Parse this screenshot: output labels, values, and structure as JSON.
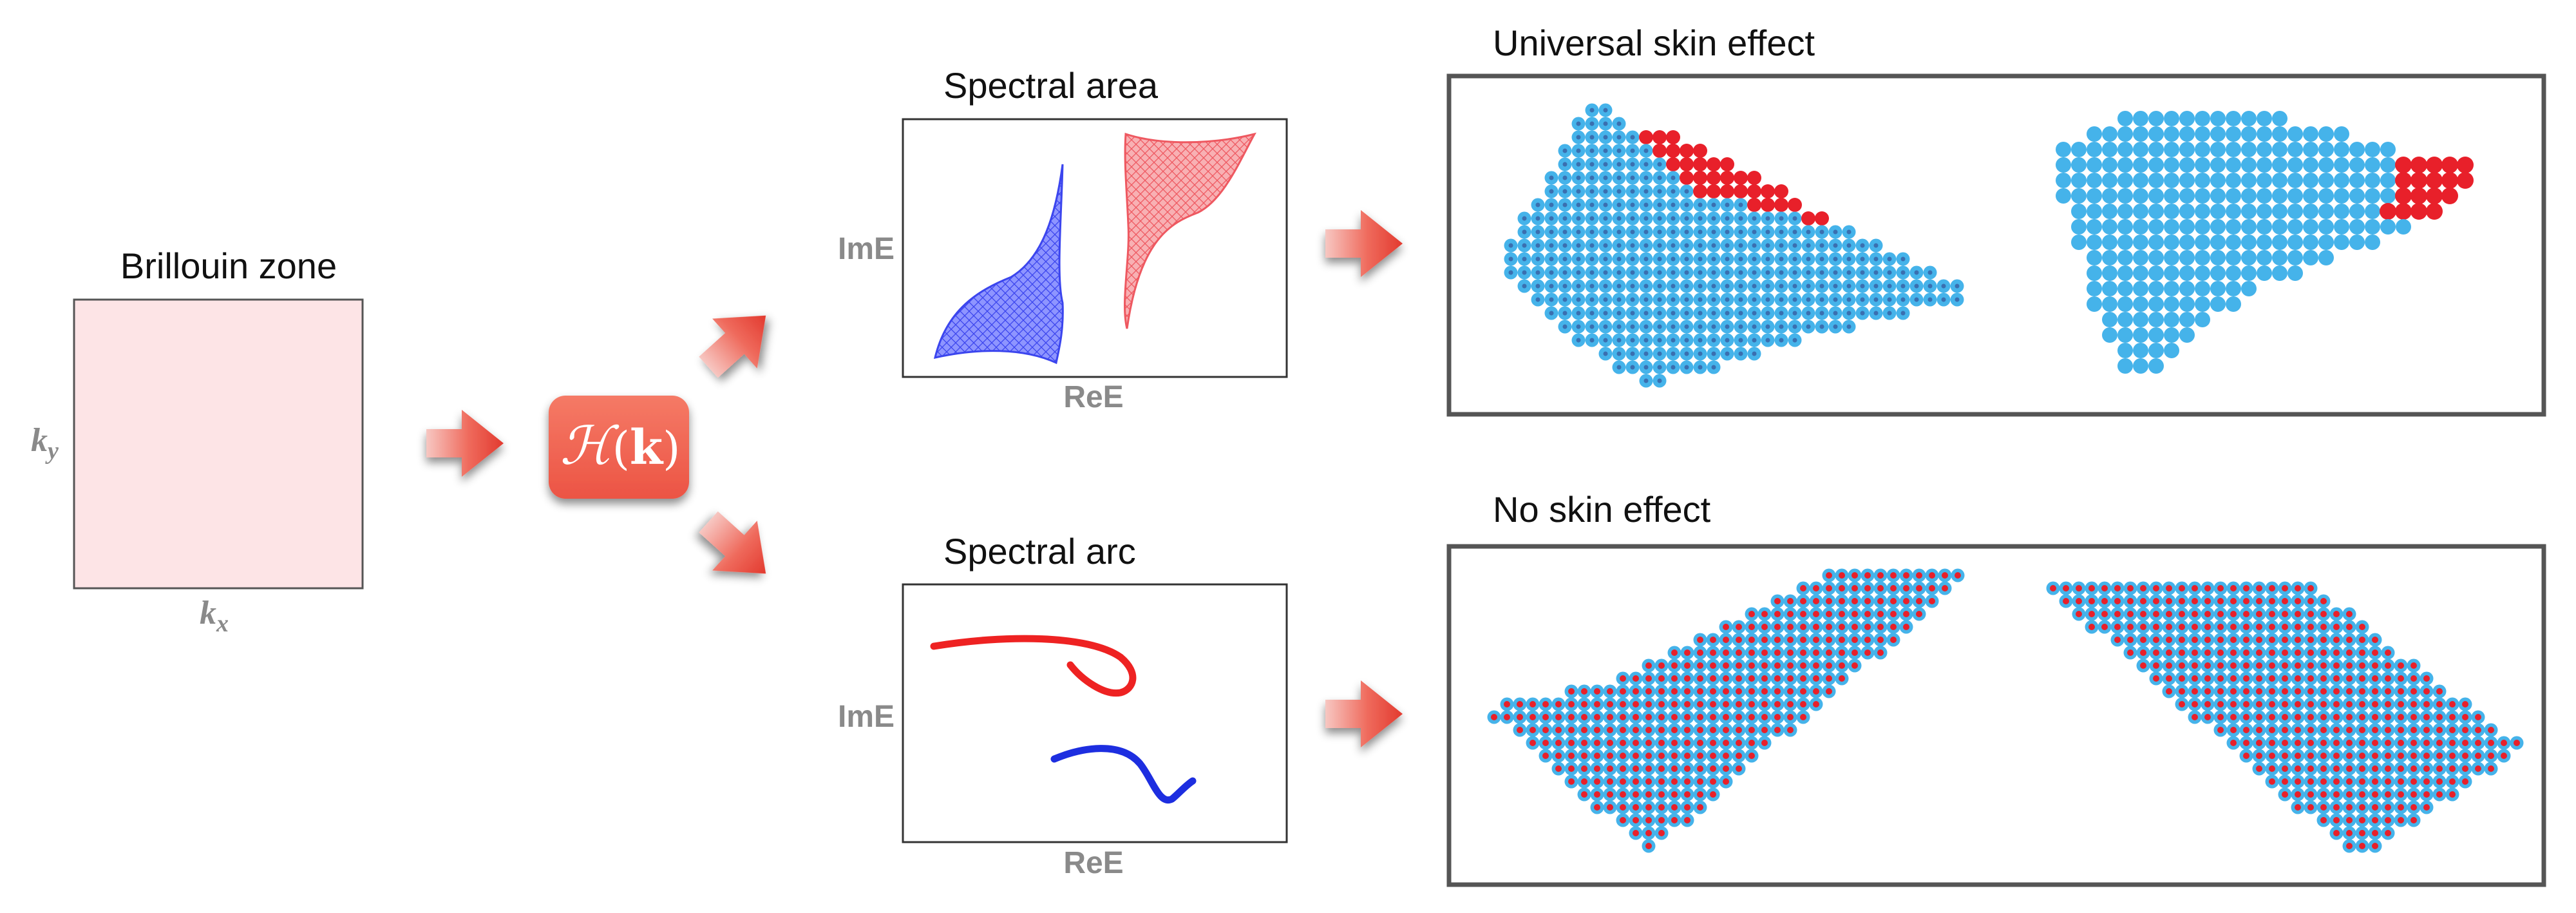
{
  "brillouin": {
    "title": "Brillouin zone",
    "kx": "k",
    "kx_sub": "x",
    "ky": "k",
    "ky_sub": "y"
  },
  "hamiltonian": {
    "script": "ℋ",
    "k": "k"
  },
  "spectral_area": {
    "title": "Spectral area",
    "ylabel": "ImE",
    "xlabel": "ReE"
  },
  "spectral_arc": {
    "title": "Spectral arc",
    "ylabel": "ImE",
    "xlabel": "ReE"
  },
  "universal": {
    "title": "Universal skin effect"
  },
  "noskin": {
    "title": "No skin effect"
  },
  "colors": {
    "bz_fill": "#fde4e6",
    "blue_dot": "#45b3ea",
    "red_dot": "#e8202a",
    "arc_red": "#ee2222",
    "arc_blue": "#1d2ee0",
    "area_blue": "#5560f5",
    "area_red": "#f27a80",
    "arrow": "#e8463b",
    "h_box": "#f16451"
  }
}
